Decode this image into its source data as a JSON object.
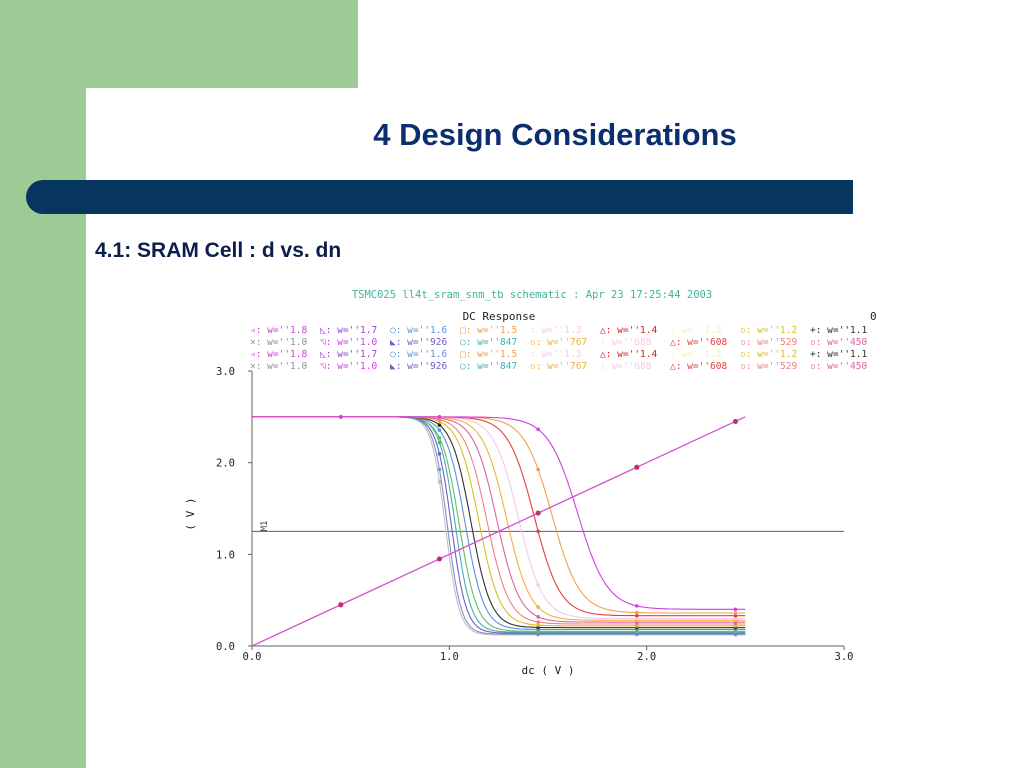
{
  "slide": {
    "title": "4 Design Considerations",
    "subtitle": "4.1:  SRAM Cell : d vs. dn"
  },
  "colors": {
    "slide_green": "#9dcb96",
    "title_navy": "#0b2f6e",
    "rule_navy": "#06355f",
    "chart_header_green": "#3fb39c"
  },
  "chart_data": {
    "type": "line",
    "header": "TSMC025 ll4t_sram_snm_tb schematic : Apr 23 17:25:44 2003",
    "title": "DC Response",
    "corner_mark": "0",
    "xlabel": "dc ( V )",
    "ylabel": "( V )",
    "xlim": [
      0,
      3
    ],
    "ylim": [
      0,
      3
    ],
    "xticks": [
      "0.0",
      "1.0",
      "2.0",
      "3.0"
    ],
    "yticks": [
      "0.0",
      "1.0",
      "2.0",
      "3.0"
    ],
    "grid": false,
    "legend_rows": [
      [
        {
          "mark": "◃:",
          "label": "w=''1.8",
          "color": "#d040e0"
        },
        {
          "mark": "◺:",
          "label": "w=''1.7",
          "color": "#a040d0"
        },
        {
          "mark": "○:",
          "label": "w=''1.6",
          "color": "#5a8fe0"
        },
        {
          "mark": "□:",
          "label": "w=''1.5",
          "color": "#f0a050"
        },
        {
          "mark": ":",
          "label": "w=''1.3",
          "color": "#f8c8e8"
        },
        {
          "mark": "△:",
          "label": "w=''1.4",
          "color": "#d02020"
        },
        {
          "mark": ":",
          "label": "w=''1.3",
          "color": "#f0f0c0"
        },
        {
          "mark": "▫:",
          "label": "w=''1.2",
          "color": "#d8c020"
        },
        {
          "mark": "+:",
          "label": "w=''1.1",
          "color": "#303030"
        }
      ],
      [
        {
          "mark": "×:",
          "label": "w=''1.0",
          "color": "#909090"
        },
        {
          "mark": "◹:",
          "label": "w=''1.0",
          "color": "#d040e0"
        },
        {
          "mark": "◣:",
          "label": "w=''926",
          "color": "#7060c0"
        },
        {
          "mark": "○:",
          "label": "w=''847",
          "color": "#40b0b0"
        },
        {
          "mark": "▫:",
          "label": "w=''767",
          "color": "#f0b040"
        },
        {
          "mark": ":",
          "label": "w=''688",
          "color": "#f8c8e8"
        },
        {
          "mark": "△:",
          "label": "w=''608",
          "color": "#e04040"
        },
        {
          "mark": "▫:",
          "label": "w=''529",
          "color": "#f08080"
        },
        {
          "mark": "▫:",
          "label": "w=''450",
          "color": "#e060a0"
        }
      ],
      [
        {
          "mark": "◃:",
          "label": "w=''1.8",
          "color": "#d040e0"
        },
        {
          "mark": "◺:",
          "label": "w=''1.7",
          "color": "#a040d0"
        },
        {
          "mark": "○:",
          "label": "w=''1.6",
          "color": "#5a8fe0"
        },
        {
          "mark": "□:",
          "label": "w=''1.5",
          "color": "#f0a050"
        },
        {
          "mark": ":",
          "label": "w=''1.3",
          "color": "#f8c8e8"
        },
        {
          "mark": "△:",
          "label": "w=''1.4",
          "color": "#d02020"
        },
        {
          "mark": ":",
          "label": "w=''1.3",
          "color": "#f0f0c0"
        },
        {
          "mark": "▫:",
          "label": "w=''1.2",
          "color": "#d8c020"
        },
        {
          "mark": "+:",
          "label": "w=''1.1",
          "color": "#303030"
        }
      ],
      [
        {
          "mark": "×:",
          "label": "w=''1.0",
          "color": "#909090"
        },
        {
          "mark": "◹:",
          "label": "w=''1.0",
          "color": "#d040e0"
        },
        {
          "mark": "◣:",
          "label": "w=''926",
          "color": "#7060c0"
        },
        {
          "mark": "○:",
          "label": "w=''847",
          "color": "#40b0b0"
        },
        {
          "mark": "▫:",
          "label": "w=''767",
          "color": "#f0b040"
        },
        {
          "mark": ":",
          "label": "w=''688",
          "color": "#f8c8e8"
        },
        {
          "mark": "△:",
          "label": "w=''608",
          "color": "#e04040"
        },
        {
          "mark": "▫:",
          "label": "w=''529",
          "color": "#f08080"
        },
        {
          "mark": "▫:",
          "label": "w=''450",
          "color": "#e060a0"
        }
      ]
    ],
    "hline": {
      "label": "M1",
      "y": 1.25,
      "color": "#606060"
    },
    "diagonal": {
      "x": [
        0.0,
        0.45,
        0.95,
        1.45,
        1.95,
        2.45
      ],
      "y": [
        0.0,
        0.45,
        0.95,
        1.45,
        1.95,
        2.45
      ],
      "color": "#d050d0"
    },
    "curve_family": {
      "x_end": 2.5,
      "series": [
        {
          "vmid": 0.98,
          "k": 0.035,
          "ylow": 0.12,
          "color": "#c0c0c0"
        },
        {
          "vmid": 0.99,
          "k": 0.035,
          "ylow": 0.13,
          "color": "#8090d0"
        },
        {
          "vmid": 1.01,
          "k": 0.038,
          "ylow": 0.14,
          "color": "#7060c0"
        },
        {
          "vmid": 1.03,
          "k": 0.04,
          "ylow": 0.15,
          "color": "#40b0b0"
        },
        {
          "vmid": 1.05,
          "k": 0.045,
          "ylow": 0.16,
          "color": "#60c060"
        },
        {
          "vmid": 1.08,
          "k": 0.048,
          "ylow": 0.18,
          "color": "#5a8fe0"
        },
        {
          "vmid": 1.11,
          "k": 0.05,
          "ylow": 0.2,
          "color": "#303030"
        },
        {
          "vmid": 1.15,
          "k": 0.053,
          "ylow": 0.22,
          "color": "#d8c020"
        },
        {
          "vmid": 1.19,
          "k": 0.056,
          "ylow": 0.24,
          "color": "#f08080"
        },
        {
          "vmid": 1.24,
          "k": 0.058,
          "ylow": 0.26,
          "color": "#e060a0"
        },
        {
          "vmid": 1.29,
          "k": 0.06,
          "ylow": 0.28,
          "color": "#f0b040"
        },
        {
          "vmid": 1.35,
          "k": 0.062,
          "ylow": 0.3,
          "color": "#f8c8e8"
        },
        {
          "vmid": 1.43,
          "k": 0.066,
          "ylow": 0.33,
          "color": "#e04040"
        },
        {
          "vmid": 1.52,
          "k": 0.07,
          "ylow": 0.36,
          "color": "#f0a050"
        },
        {
          "vmid": 1.65,
          "k": 0.075,
          "ylow": 0.4,
          "color": "#d040e0"
        }
      ]
    }
  }
}
